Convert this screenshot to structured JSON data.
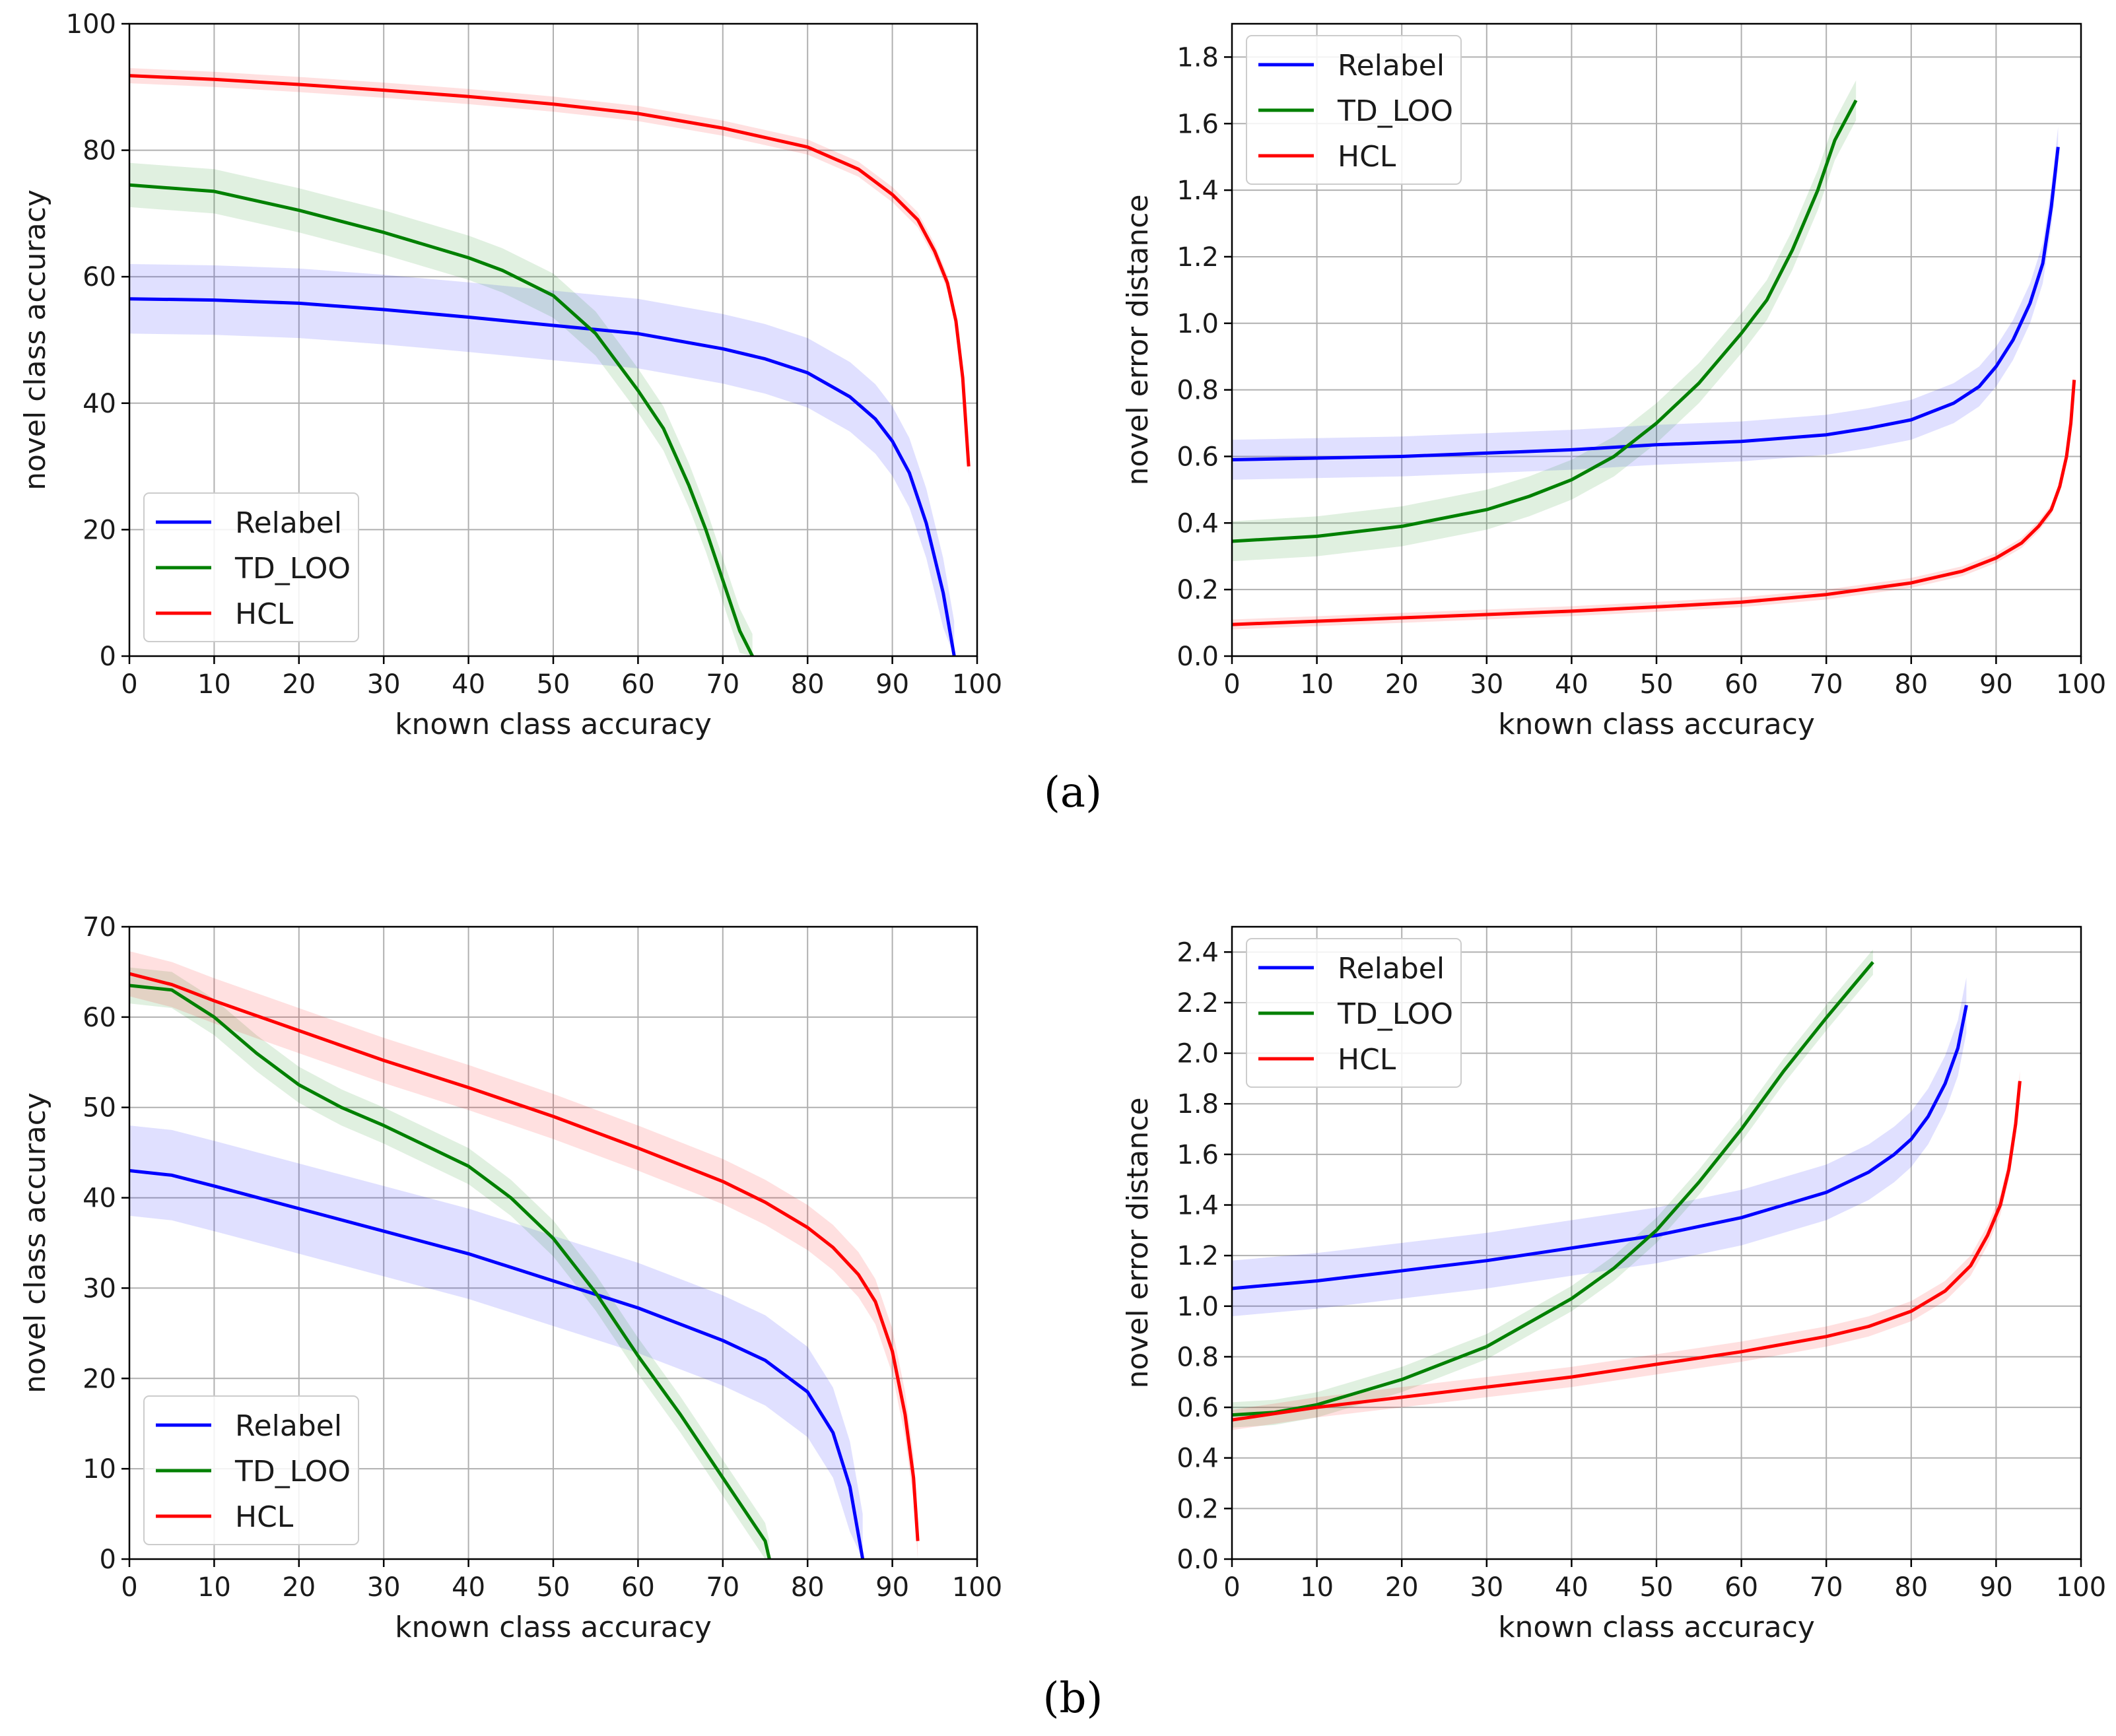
{
  "panel_labels": {
    "a": "(a)",
    "b": "(b)"
  },
  "colors": {
    "Relabel": "#0000ff",
    "TD_LOO": "#008000",
    "HCL": "#ff0000"
  },
  "chart_data": [
    {
      "id": "a-left",
      "type": "line",
      "xlabel": "known class accuracy",
      "ylabel": "novel class accuracy",
      "xlim": [
        0,
        100
      ],
      "ylim": [
        0,
        100
      ],
      "xticks": [
        "0",
        "10",
        "20",
        "30",
        "40",
        "50",
        "60",
        "70",
        "80",
        "90",
        "100"
      ],
      "yticks": [
        "0",
        "20",
        "40",
        "60",
        "80",
        "100"
      ],
      "legend": {
        "position": "lower-left",
        "entries": [
          "Relabel",
          "TD_LOO",
          "HCL"
        ]
      },
      "series": [
        {
          "name": "Relabel",
          "band": 5.5,
          "x": [
            0,
            10,
            20,
            30,
            40,
            50,
            60,
            70,
            75,
            80,
            85,
            88,
            90,
            92,
            94,
            96,
            97.3
          ],
          "y": [
            56.5,
            56.3,
            55.8,
            54.8,
            53.6,
            52.3,
            51.0,
            48.6,
            47.0,
            44.8,
            41.0,
            37.5,
            34.0,
            29.0,
            21.0,
            10.0,
            0
          ]
        },
        {
          "name": "TD_LOO",
          "band": 3.5,
          "x": [
            0,
            10,
            20,
            30,
            40,
            44,
            50,
            55,
            60,
            63,
            66,
            68,
            70,
            72,
            73.5
          ],
          "y": [
            74.5,
            73.5,
            70.5,
            67.0,
            63.0,
            61.0,
            57.0,
            51.0,
            42.0,
            36.0,
            27.0,
            20.0,
            12.0,
            4.0,
            0
          ]
        },
        {
          "name": "HCL",
          "band": 1.2,
          "x": [
            0,
            10,
            20,
            30,
            40,
            50,
            60,
            70,
            80,
            86,
            90,
            93,
            95,
            96.5,
            97.5,
            98.3,
            99
          ],
          "y": [
            91.8,
            91.2,
            90.4,
            89.5,
            88.5,
            87.3,
            85.8,
            83.5,
            80.5,
            77.0,
            73.0,
            69.0,
            64.0,
            59.0,
            53.0,
            44.0,
            30.0
          ]
        }
      ]
    },
    {
      "id": "a-right",
      "type": "line",
      "xlabel": "known class accuracy",
      "ylabel": "novel error distance",
      "xlim": [
        0,
        100
      ],
      "ylim": [
        0,
        1.9
      ],
      "xticks": [
        "0",
        "10",
        "20",
        "30",
        "40",
        "50",
        "60",
        "70",
        "80",
        "90",
        "100"
      ],
      "yticks": [
        "0.0",
        "0.2",
        "0.4",
        "0.6",
        "0.8",
        "1.0",
        "1.2",
        "1.4",
        "1.6",
        "1.8"
      ],
      "legend": {
        "position": "upper-left",
        "entries": [
          "Relabel",
          "TD_LOO",
          "HCL"
        ]
      },
      "series": [
        {
          "name": "Relabel",
          "band": 0.06,
          "x": [
            0,
            10,
            20,
            30,
            40,
            50,
            60,
            70,
            75,
            80,
            85,
            88,
            90,
            92,
            94,
            95.5,
            96.5,
            97.3
          ],
          "y": [
            0.59,
            0.595,
            0.6,
            0.61,
            0.62,
            0.635,
            0.645,
            0.665,
            0.685,
            0.71,
            0.76,
            0.81,
            0.87,
            0.95,
            1.06,
            1.18,
            1.35,
            1.53
          ]
        },
        {
          "name": "TD_LOO",
          "band": 0.06,
          "x": [
            0,
            10,
            20,
            30,
            35,
            40,
            45,
            50,
            55,
            60,
            63,
            66,
            69,
            71,
            73.5
          ],
          "y": [
            0.345,
            0.36,
            0.39,
            0.44,
            0.48,
            0.53,
            0.6,
            0.7,
            0.82,
            0.97,
            1.07,
            1.22,
            1.4,
            1.55,
            1.67
          ]
        },
        {
          "name": "HCL",
          "band": 0.015,
          "x": [
            0,
            10,
            20,
            30,
            40,
            50,
            60,
            70,
            80,
            86,
            90,
            93,
            95,
            96.5,
            97.5,
            98.3,
            98.8,
            99.2
          ],
          "y": [
            0.095,
            0.105,
            0.115,
            0.125,
            0.135,
            0.148,
            0.162,
            0.185,
            0.22,
            0.255,
            0.295,
            0.34,
            0.39,
            0.44,
            0.51,
            0.6,
            0.7,
            0.83
          ]
        }
      ]
    },
    {
      "id": "b-left",
      "type": "line",
      "xlabel": "known class accuracy",
      "ylabel": "novel class accuracy",
      "xlim": [
        0,
        100
      ],
      "ylim": [
        0,
        70
      ],
      "xticks": [
        "0",
        "10",
        "20",
        "30",
        "40",
        "50",
        "60",
        "70",
        "80",
        "90",
        "100"
      ],
      "yticks": [
        "0",
        "10",
        "20",
        "30",
        "40",
        "50",
        "60",
        "70"
      ],
      "legend": {
        "position": "lower-left",
        "entries": [
          "Relabel",
          "TD_LOO",
          "HCL"
        ]
      },
      "series": [
        {
          "name": "Relabel",
          "band": 5.0,
          "x": [
            0,
            5,
            10,
            20,
            30,
            40,
            50,
            60,
            70,
            75,
            80,
            83,
            85,
            86.5
          ],
          "y": [
            43,
            42.5,
            41.3,
            38.8,
            36.3,
            33.8,
            30.8,
            27.8,
            24.2,
            22.0,
            18.5,
            14.0,
            8.0,
            0
          ]
        },
        {
          "name": "TD_LOO",
          "band": 2.0,
          "x": [
            0,
            5,
            10,
            15,
            20,
            25,
            30,
            40,
            45,
            50,
            55,
            60,
            65,
            70,
            75,
            75.5
          ],
          "y": [
            63.5,
            63.0,
            60.0,
            56.0,
            52.5,
            50.0,
            48.0,
            43.5,
            40.0,
            35.5,
            29.5,
            22.5,
            16.0,
            9.0,
            2.0,
            0
          ]
        },
        {
          "name": "HCL",
          "band": 2.5,
          "x": [
            0,
            5,
            10,
            20,
            30,
            40,
            50,
            60,
            70,
            75,
            80,
            83,
            86,
            88,
            90,
            91.5,
            92.5,
            93
          ],
          "y": [
            64.8,
            63.6,
            61.8,
            58.5,
            55.2,
            52.2,
            49.0,
            45.5,
            41.8,
            39.5,
            36.7,
            34.5,
            31.5,
            28.5,
            23.0,
            16.0,
            9.0,
            2.0
          ]
        }
      ]
    },
    {
      "id": "b-right",
      "type": "line",
      "xlabel": "known class accuracy",
      "ylabel": "novel error distance",
      "xlim": [
        0,
        100
      ],
      "ylim": [
        0,
        2.5
      ],
      "xticks": [
        "0",
        "10",
        "20",
        "30",
        "40",
        "50",
        "60",
        "70",
        "80",
        "90",
        "100"
      ],
      "yticks": [
        "0.0",
        "0.2",
        "0.4",
        "0.6",
        "0.8",
        "1.0",
        "1.2",
        "1.4",
        "1.6",
        "1.8",
        "2.0",
        "2.2",
        "2.4"
      ],
      "legend": {
        "position": "upper-left",
        "entries": [
          "Relabel",
          "TD_LOO",
          "HCL"
        ]
      },
      "series": [
        {
          "name": "Relabel",
          "band": 0.11,
          "x": [
            0,
            10,
            20,
            30,
            40,
            50,
            60,
            70,
            75,
            78,
            80,
            82,
            84,
            85.5,
            86.5
          ],
          "y": [
            1.07,
            1.1,
            1.14,
            1.18,
            1.23,
            1.28,
            1.35,
            1.45,
            1.53,
            1.6,
            1.66,
            1.75,
            1.88,
            2.02,
            2.19
          ]
        },
        {
          "name": "TD_LOO",
          "band": 0.05,
          "x": [
            0,
            5,
            10,
            20,
            30,
            40,
            45,
            50,
            55,
            60,
            65,
            70,
            75.5
          ],
          "y": [
            0.57,
            0.58,
            0.61,
            0.71,
            0.84,
            1.03,
            1.15,
            1.3,
            1.49,
            1.7,
            1.93,
            2.14,
            2.36
          ]
        },
        {
          "name": "HCL",
          "band": 0.04,
          "x": [
            0,
            10,
            20,
            30,
            40,
            50,
            60,
            70,
            75,
            80,
            84,
            87,
            89,
            90.5,
            91.5,
            92.3,
            92.8
          ],
          "y": [
            0.55,
            0.6,
            0.64,
            0.68,
            0.72,
            0.77,
            0.82,
            0.88,
            0.92,
            0.98,
            1.06,
            1.16,
            1.28,
            1.4,
            1.54,
            1.72,
            1.89
          ]
        }
      ]
    }
  ]
}
